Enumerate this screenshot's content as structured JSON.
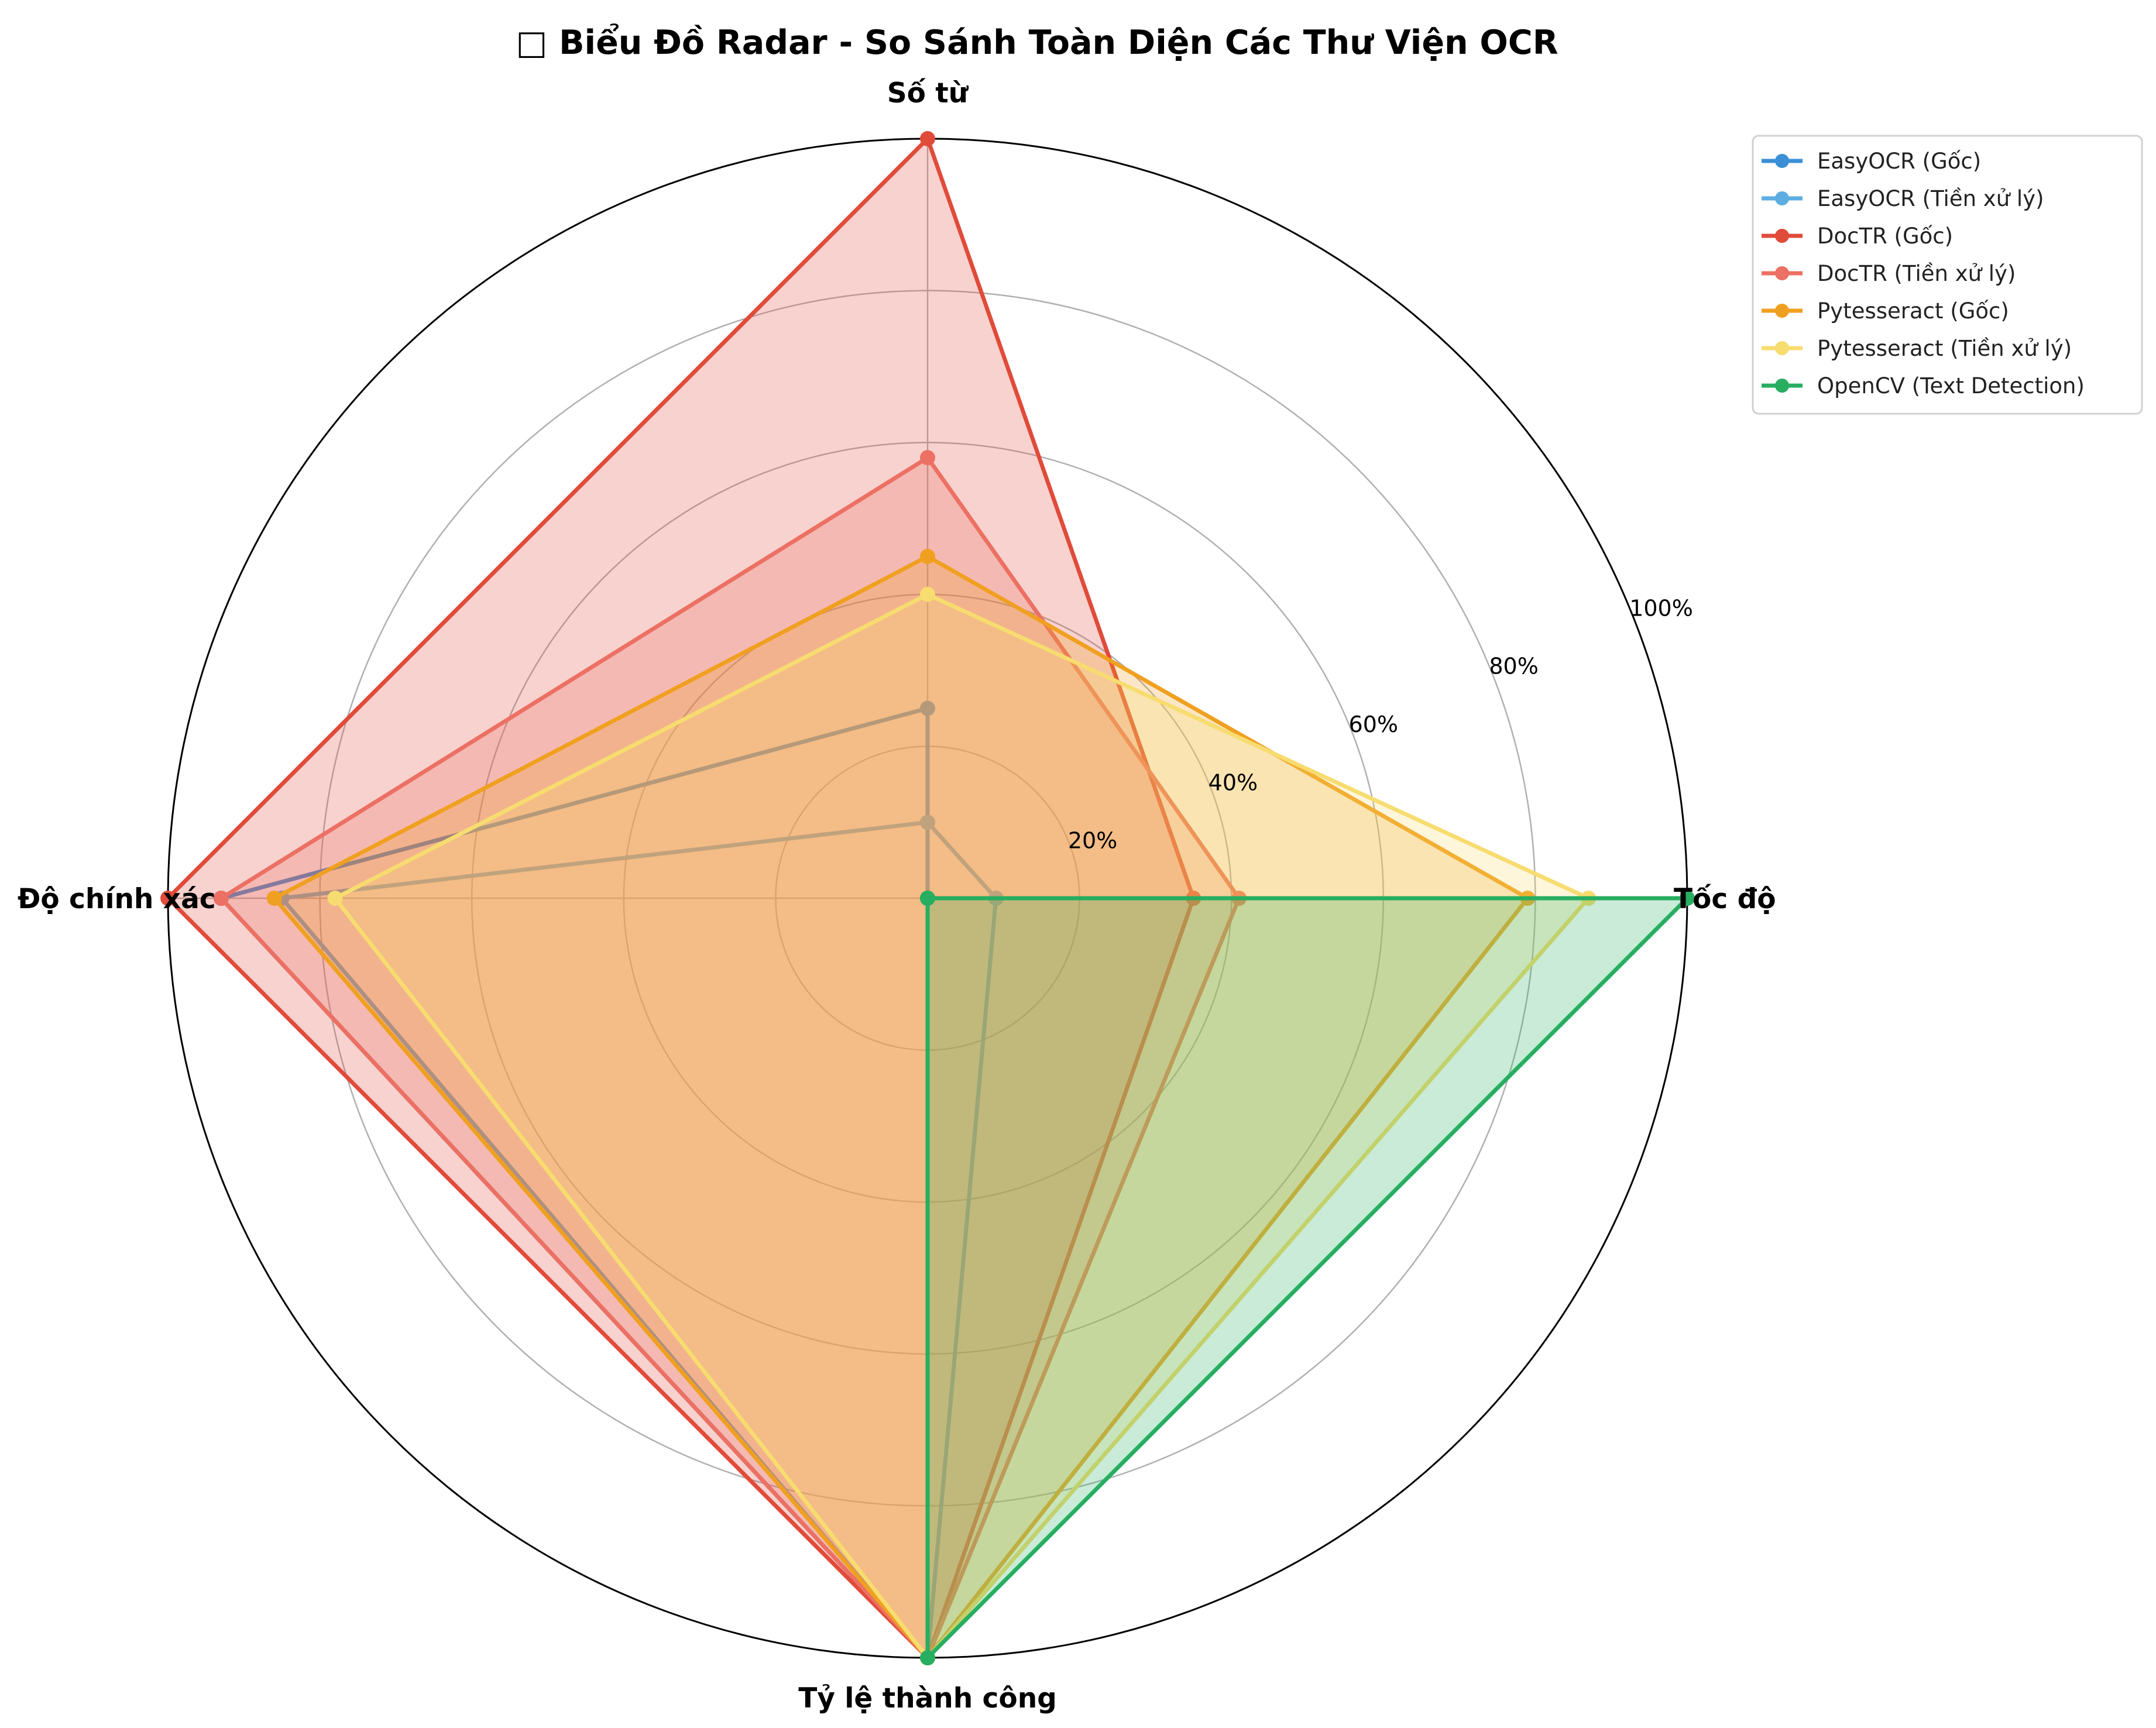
{
  "chart_data": {
    "type": "radar",
    "title": "□ Biểu Đồ Radar - So Sánh Toàn Diện Các Thư Viện OCR",
    "axes": [
      "Số từ",
      "Độ chính xác",
      "Tỷ lệ thành công",
      "Tốc độ"
    ],
    "rlim": [
      0,
      100
    ],
    "rticks": [
      20,
      40,
      60,
      80,
      100
    ],
    "rtick_labels": [
      "20%",
      "40%",
      "60%",
      "80%",
      "100%"
    ],
    "grid": true,
    "legend_position": "top-right outside",
    "series": [
      {
        "name": "EasyOCR (Gốc)",
        "color": "#3a8fd6",
        "fill": false,
        "values": [
          25,
          93,
          100,
          0
        ]
      },
      {
        "name": "EasyOCR (Tiền xử lý)",
        "color": "#5dade2",
        "fill": false,
        "values": [
          10,
          85,
          100,
          9
        ]
      },
      {
        "name": "DocTR (Gốc)",
        "color": "#e04b3a",
        "fill": true,
        "values": [
          100,
          100,
          100,
          35
        ]
      },
      {
        "name": "DocTR (Tiền xử lý)",
        "color": "#ec7063",
        "fill": true,
        "values": [
          58,
          93,
          100,
          41
        ]
      },
      {
        "name": "Pytesseract (Gốc)",
        "color": "#f0a020",
        "fill": true,
        "values": [
          45,
          86,
          100,
          79
        ]
      },
      {
        "name": "Pytesseract (Tiền xử lý)",
        "color": "#f7dc6f",
        "fill": true,
        "values": [
          40,
          78,
          100,
          87
        ]
      },
      {
        "name": "OpenCV (Text Detection)",
        "color": "#27ae60",
        "fill": true,
        "values": [
          0,
          0,
          100,
          100
        ]
      }
    ]
  }
}
